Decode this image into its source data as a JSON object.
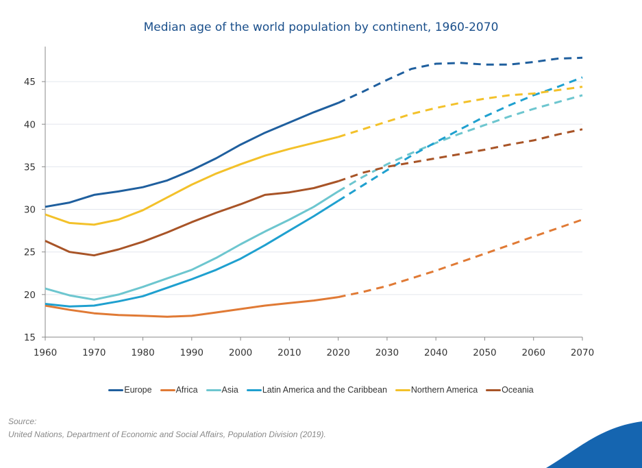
{
  "chart_data": {
    "type": "line",
    "title": "Median age of the world population by continent, 1960-2070",
    "xlabel": "",
    "ylabel": "",
    "xlim": [
      1960,
      2070
    ],
    "ylim": [
      15,
      49
    ],
    "x_ticks": [
      "1960",
      "1970",
      "1980",
      "1990",
      "2000",
      "2010",
      "2020",
      "2030",
      "2040",
      "2050",
      "2060",
      "2070"
    ],
    "y_ticks": [
      "15",
      "20",
      "25",
      "30",
      "35",
      "40",
      "45"
    ],
    "grid": "horizontal",
    "legend_placement": "bottom",
    "projection_start": 2020,
    "x": [
      1960,
      1965,
      1970,
      1975,
      1980,
      1985,
      1990,
      1995,
      2000,
      2005,
      2010,
      2015,
      2020,
      2025,
      2030,
      2035,
      2040,
      2045,
      2050,
      2055,
      2060,
      2065,
      2070
    ],
    "series": [
      {
        "name": "Europe",
        "color": "#1f5f9e",
        "values": [
          30.3,
          30.8,
          31.7,
          32.1,
          32.6,
          33.4,
          34.6,
          36.0,
          37.6,
          39.0,
          40.2,
          41.4,
          42.5,
          43.8,
          45.2,
          46.5,
          47.1,
          47.2,
          47.0,
          47.0,
          47.3,
          47.7,
          47.8
        ]
      },
      {
        "name": "Africa",
        "color": "#e07a35",
        "values": [
          18.7,
          18.2,
          17.8,
          17.6,
          17.5,
          17.4,
          17.5,
          17.9,
          18.3,
          18.7,
          19.0,
          19.3,
          19.7,
          20.3,
          21.0,
          21.9,
          22.8,
          23.8,
          24.8,
          25.8,
          26.8,
          27.8,
          28.8
        ]
      },
      {
        "name": "Asia",
        "color": "#6dc6cf",
        "values": [
          20.7,
          19.9,
          19.4,
          20.0,
          20.9,
          21.9,
          22.9,
          24.3,
          25.9,
          27.4,
          28.8,
          30.3,
          32.1,
          33.8,
          35.3,
          36.6,
          37.8,
          38.9,
          39.9,
          40.9,
          41.8,
          42.6,
          43.4
        ]
      },
      {
        "name": "Latin America and the Caribbean",
        "color": "#1fa0cf",
        "values": [
          18.9,
          18.6,
          18.7,
          19.2,
          19.8,
          20.8,
          21.8,
          22.9,
          24.2,
          25.8,
          27.5,
          29.2,
          31.0,
          32.8,
          34.6,
          36.3,
          37.9,
          39.4,
          40.9,
          42.2,
          43.4,
          44.4,
          45.5
        ]
      },
      {
        "name": "Northern America",
        "color": "#f3c12a",
        "values": [
          29.4,
          28.4,
          28.2,
          28.8,
          29.9,
          31.4,
          32.9,
          34.2,
          35.3,
          36.3,
          37.1,
          37.8,
          38.5,
          39.4,
          40.3,
          41.2,
          41.9,
          42.5,
          43.0,
          43.4,
          43.6,
          44.0,
          44.4
        ]
      },
      {
        "name": "Oceania",
        "color": "#a85427",
        "values": [
          26.3,
          25.0,
          24.6,
          25.3,
          26.2,
          27.3,
          28.5,
          29.6,
          30.6,
          31.7,
          32.0,
          32.5,
          33.3,
          34.3,
          35.0,
          35.5,
          36.0,
          36.5,
          37.0,
          37.6,
          38.1,
          38.8,
          39.4
        ]
      }
    ]
  },
  "source": {
    "label": "Source:",
    "text": "United Nations, Department of Economic and Social Affairs, Population Division (2019)."
  },
  "colors": {
    "title": "#1a4f8b",
    "swoosh": "#1565b0",
    "grid": "#e3e6ee"
  }
}
